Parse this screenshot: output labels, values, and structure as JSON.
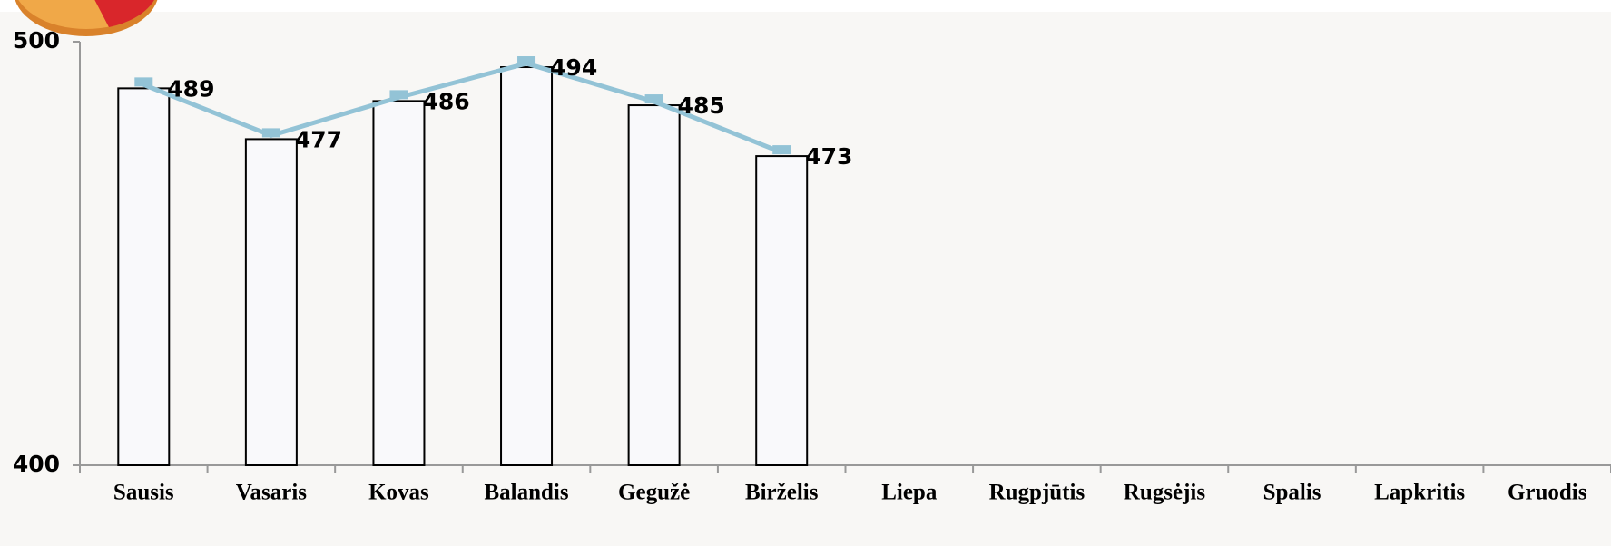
{
  "chart_data": {
    "type": "bar",
    "categories": [
      "Sausis",
      "Vasaris",
      "Kovas",
      "Balandis",
      "Gegužė",
      "Birželis",
      "Liepa",
      "Rugpjūtis",
      "Rugsėjis",
      "Spalis",
      "Lapkritis",
      "Gruodis"
    ],
    "values": [
      489,
      477,
      486,
      494,
      485,
      473,
      null,
      null,
      null,
      null,
      null,
      null
    ],
    "color": "#f9f9fb",
    "line_color": "#93c3d6",
    "ylim": [
      400,
      500
    ],
    "yticks": [
      400,
      500
    ],
    "grid": false
  }
}
